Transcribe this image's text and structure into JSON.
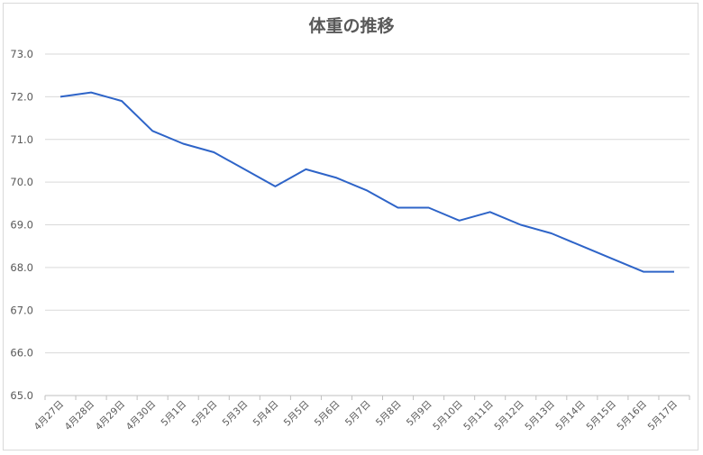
{
  "chart_data": {
    "type": "line",
    "title": "体重の推移",
    "xlabel": "",
    "ylabel": "",
    "ylim": [
      65.0,
      73.0
    ],
    "yticks": [
      "65.0",
      "66.0",
      "67.0",
      "68.0",
      "69.0",
      "70.0",
      "71.0",
      "72.0",
      "73.0"
    ],
    "grid": true,
    "legend": "none",
    "color": "#2e64c8",
    "categories": [
      "4月27日",
      "4月28日",
      "4月29日",
      "4月30日",
      "5月1日",
      "5月2日",
      "5月3日",
      "5月4日",
      "5月5日",
      "5月6日",
      "5月7日",
      "5月8日",
      "5月9日",
      "5月10日",
      "5月11日",
      "5月12日",
      "5月13日",
      "5月14日",
      "5月15日",
      "5月16日",
      "5月17日"
    ],
    "values": [
      72.0,
      72.1,
      71.9,
      71.2,
      70.9,
      70.7,
      70.3,
      69.9,
      70.3,
      70.1,
      69.8,
      69.4,
      69.4,
      69.1,
      69.3,
      69.0,
      68.8,
      68.5,
      68.2,
      67.9,
      67.9
    ]
  }
}
